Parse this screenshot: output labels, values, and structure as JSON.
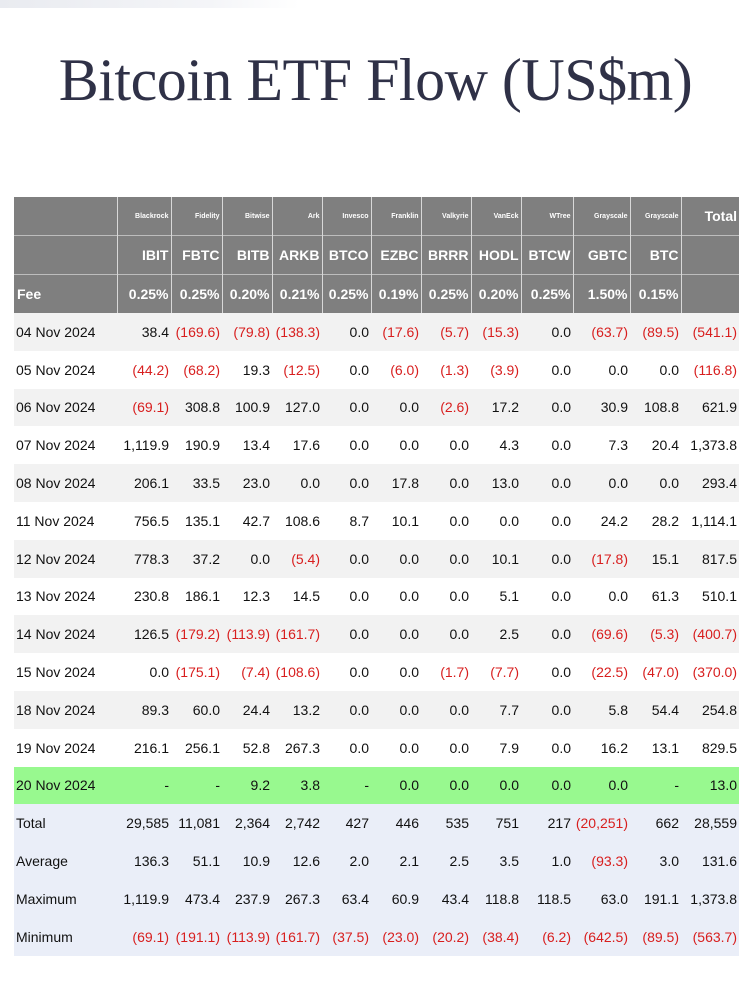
{
  "title": "Bitcoin ETF Flow (US$m)",
  "colors": {
    "header_bg": "#7f7f7f",
    "row_shade": "#f2f2f2",
    "row_highlight": "#98f98f",
    "summary_bg": "#eaeef8",
    "negative": "#d81e1e",
    "title": "#2f3147"
  },
  "header": {
    "issuers": [
      "Blackrock",
      "Fidelity",
      "Bitwise",
      "Ark",
      "Invesco",
      "Franklin",
      "Valkyrie",
      "VanEck",
      "WTree",
      "Grayscale",
      "Grayscale"
    ],
    "total_label": "Total",
    "tickers": [
      "IBIT",
      "FBTC",
      "BITB",
      "ARKB",
      "BTCO",
      "EZBC",
      "BRRR",
      "HODL",
      "BTCW",
      "GBTC",
      "BTC"
    ],
    "fee_label": "Fee",
    "fees": [
      "0.25%",
      "0.25%",
      "0.20%",
      "0.21%",
      "0.25%",
      "0.19%",
      "0.25%",
      "0.20%",
      "0.25%",
      "1.50%",
      "0.15%"
    ]
  },
  "rows": [
    {
      "date": "04 Nov 2024",
      "cells": [
        "38.4",
        "(169.6)",
        "(79.8)",
        "(138.3)",
        "0.0",
        "(17.6)",
        "(5.7)",
        "(15.3)",
        "0.0",
        "(63.7)",
        "(89.5)",
        "(541.1)"
      ]
    },
    {
      "date": "05 Nov 2024",
      "cells": [
        "(44.2)",
        "(68.2)",
        "19.3",
        "(12.5)",
        "0.0",
        "(6.0)",
        "(1.3)",
        "(3.9)",
        "0.0",
        "0.0",
        "0.0",
        "(116.8)"
      ]
    },
    {
      "date": "06 Nov 2024",
      "cells": [
        "(69.1)",
        "308.8",
        "100.9",
        "127.0",
        "0.0",
        "0.0",
        "(2.6)",
        "17.2",
        "0.0",
        "30.9",
        "108.8",
        "621.9"
      ]
    },
    {
      "date": "07 Nov 2024",
      "cells": [
        "1,119.9",
        "190.9",
        "13.4",
        "17.6",
        "0.0",
        "0.0",
        "0.0",
        "4.3",
        "0.0",
        "7.3",
        "20.4",
        "1,373.8"
      ]
    },
    {
      "date": "08 Nov 2024",
      "cells": [
        "206.1",
        "33.5",
        "23.0",
        "0.0",
        "0.0",
        "17.8",
        "0.0",
        "13.0",
        "0.0",
        "0.0",
        "0.0",
        "293.4"
      ]
    },
    {
      "date": "11 Nov 2024",
      "cells": [
        "756.5",
        "135.1",
        "42.7",
        "108.6",
        "8.7",
        "10.1",
        "0.0",
        "0.0",
        "0.0",
        "24.2",
        "28.2",
        "1,114.1"
      ]
    },
    {
      "date": "12 Nov 2024",
      "cells": [
        "778.3",
        "37.2",
        "0.0",
        "(5.4)",
        "0.0",
        "0.0",
        "0.0",
        "10.1",
        "0.0",
        "(17.8)",
        "15.1",
        "817.5"
      ]
    },
    {
      "date": "13 Nov 2024",
      "cells": [
        "230.8",
        "186.1",
        "12.3",
        "14.5",
        "0.0",
        "0.0",
        "0.0",
        "5.1",
        "0.0",
        "0.0",
        "61.3",
        "510.1"
      ]
    },
    {
      "date": "14 Nov 2024",
      "cells": [
        "126.5",
        "(179.2)",
        "(113.9)",
        "(161.7)",
        "0.0",
        "0.0",
        "0.0",
        "2.5",
        "0.0",
        "(69.6)",
        "(5.3)",
        "(400.7)"
      ]
    },
    {
      "date": "15 Nov 2024",
      "cells": [
        "0.0",
        "(175.1)",
        "(7.4)",
        "(108.6)",
        "0.0",
        "0.0",
        "(1.7)",
        "(7.7)",
        "0.0",
        "(22.5)",
        "(47.0)",
        "(370.0)"
      ]
    },
    {
      "date": "18 Nov 2024",
      "cells": [
        "89.3",
        "60.0",
        "24.4",
        "13.2",
        "0.0",
        "0.0",
        "0.0",
        "7.7",
        "0.0",
        "5.8",
        "54.4",
        "254.8"
      ]
    },
    {
      "date": "19 Nov 2024",
      "cells": [
        "216.1",
        "256.1",
        "52.8",
        "267.3",
        "0.0",
        "0.0",
        "0.0",
        "7.9",
        "0.0",
        "16.2",
        "13.1",
        "829.5"
      ]
    },
    {
      "date": "20 Nov 2024",
      "highlight": true,
      "cells": [
        "-",
        "-",
        "9.2",
        "3.8",
        "-",
        "0.0",
        "0.0",
        "0.0",
        "0.0",
        "0.0",
        "-",
        "13.0"
      ]
    }
  ],
  "summary": [
    {
      "label": "Total",
      "cells": [
        "29,585",
        "11,081",
        "2,364",
        "2,742",
        "427",
        "446",
        "535",
        "751",
        "217",
        "(20,251)",
        "662",
        "28,559"
      ]
    },
    {
      "label": "Average",
      "cells": [
        "136.3",
        "51.1",
        "10.9",
        "12.6",
        "2.0",
        "2.1",
        "2.5",
        "3.5",
        "1.0",
        "(93.3)",
        "3.0",
        "131.6"
      ]
    },
    {
      "label": "Maximum",
      "cells": [
        "1,119.9",
        "473.4",
        "237.9",
        "267.3",
        "63.4",
        "60.9",
        "43.4",
        "118.8",
        "118.5",
        "63.0",
        "191.1",
        "1,373.8"
      ]
    },
    {
      "label": "Minimum",
      "cells": [
        "(69.1)",
        "(191.1)",
        "(113.9)",
        "(161.7)",
        "(37.5)",
        "(23.0)",
        "(20.2)",
        "(38.4)",
        "(6.2)",
        "(642.5)",
        "(89.5)",
        "(563.7)"
      ]
    }
  ]
}
